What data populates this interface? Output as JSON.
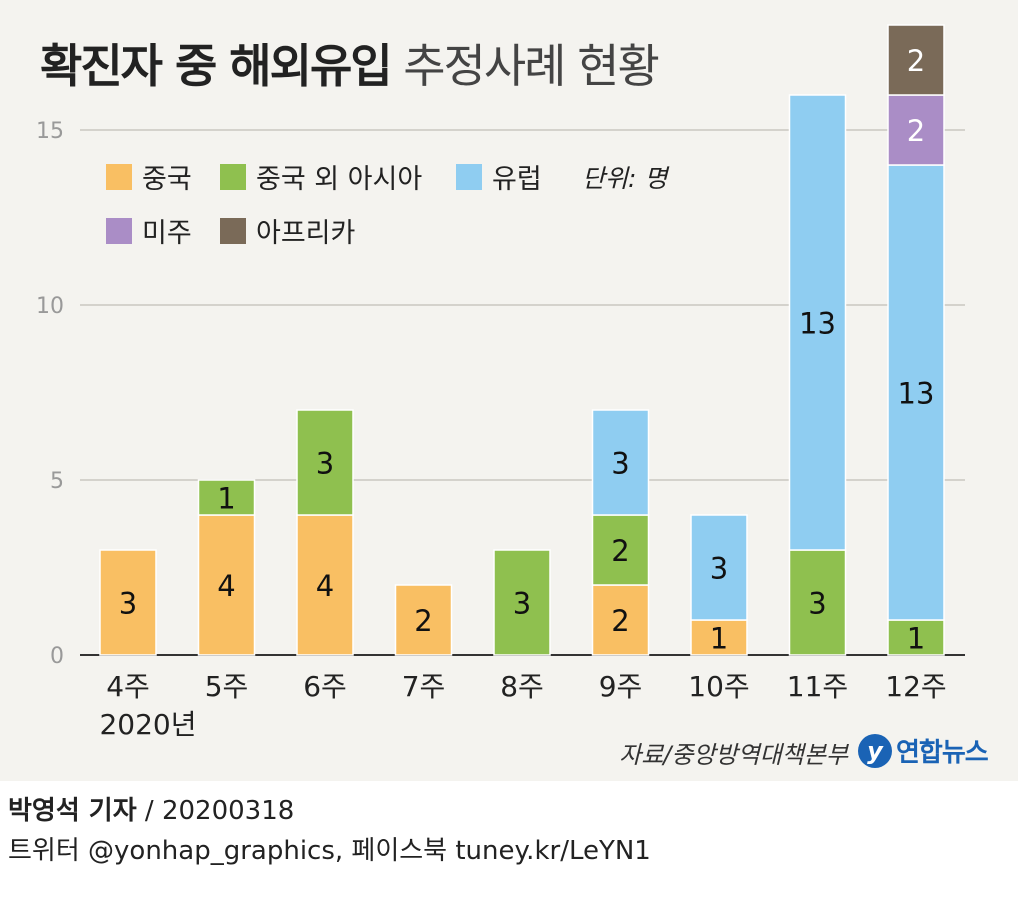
{
  "title": {
    "bold": "확진자 중 해외유입",
    "light": "추정사례 현황"
  },
  "legend": {
    "items": [
      {
        "label": "중국",
        "color": "#f9bf63"
      },
      {
        "label": "중국 외 아시아",
        "color": "#8fc04f"
      },
      {
        "label": "유럽",
        "color": "#8fcdf1"
      },
      {
        "label": "미주",
        "color": "#aa8dc6"
      },
      {
        "label": "아프리카",
        "color": "#7a6a58"
      }
    ],
    "unit": "단위: 명"
  },
  "chart_data": {
    "type": "bar",
    "stacked": true,
    "categories": [
      "4주",
      "5주",
      "6주",
      "7주",
      "8주",
      "9주",
      "10주",
      "11주",
      "12주"
    ],
    "category_sublabel": "2020년",
    "series": [
      {
        "name": "중국",
        "values": [
          3,
          4,
          4,
          2,
          0,
          2,
          1,
          0,
          0
        ]
      },
      {
        "name": "중국 외 아시아",
        "values": [
          0,
          1,
          3,
          0,
          3,
          2,
          0,
          3,
          1
        ]
      },
      {
        "name": "유럽",
        "values": [
          0,
          0,
          0,
          0,
          0,
          3,
          3,
          13,
          13
        ]
      },
      {
        "name": "미주",
        "values": [
          0,
          0,
          0,
          0,
          0,
          0,
          0,
          0,
          2
        ]
      },
      {
        "name": "아프리카",
        "values": [
          0,
          0,
          0,
          0,
          0,
          0,
          0,
          0,
          2
        ]
      }
    ],
    "yticks": [
      0,
      5,
      10,
      15
    ],
    "ylim": [
      0,
      18
    ],
    "grid": true,
    "legend_position": "top-left"
  },
  "source": "자료/중앙방역대책본부",
  "logo": {
    "mark": "y",
    "text": "연합뉴스"
  },
  "byline": {
    "name": "박영석 기자",
    "date": "/  20200318"
  },
  "social": "트위터 @yonhap_graphics, 페이스북 tuney.kr/LeYN1"
}
